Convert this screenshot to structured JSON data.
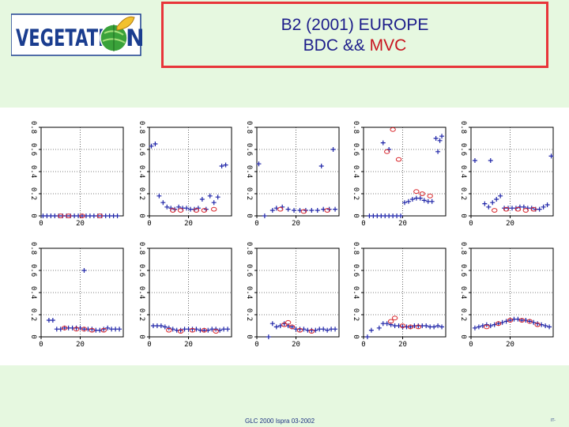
{
  "logo": {
    "text": "VEGETATI",
    "text_end": "N",
    "icon": "globe-leaf-icon",
    "colors": {
      "text": "#1a3d8f",
      "globe": "#3aa23a",
      "leaf": "#f2c12e"
    }
  },
  "title": {
    "line1": "B2 (2001) EUROPE",
    "line2_prefix": "BDC && ",
    "line2_accent": "MVC"
  },
  "footer": {
    "text": "GLC 2000 Ispra 03-2002",
    "page_mark": "IT-"
  },
  "colors": {
    "background": "#e6f8e0",
    "title_text": "#1c1c8a",
    "title_accent": "#c8141e",
    "title_border": "#e8353a",
    "bdc_marker": "#1f25a8",
    "mvc_marker": "#d9262b"
  },
  "chart_data": {
    "type": "scatter",
    "rows": 2,
    "cols": 5,
    "ylim": [
      0,
      0.8
    ],
    "xlim": [
      0,
      42
    ],
    "yticks": [
      "0",
      "0.2",
      "0.4",
      "0.6",
      "0.8"
    ],
    "xticks": [
      "0",
      "20"
    ],
    "xtick_values": [
      0,
      20
    ],
    "panels": [
      {
        "bdc": [
          [
            1,
            0
          ],
          [
            3,
            0
          ],
          [
            5,
            0
          ],
          [
            7,
            0
          ],
          [
            9,
            0
          ],
          [
            11,
            0
          ],
          [
            13,
            0
          ],
          [
            15,
            0
          ],
          [
            17,
            0
          ],
          [
            19,
            0
          ],
          [
            21,
            0
          ],
          [
            23,
            0
          ],
          [
            25,
            0
          ],
          [
            27,
            0
          ],
          [
            29,
            0
          ],
          [
            31,
            0
          ],
          [
            33,
            0
          ],
          [
            35,
            0
          ],
          [
            37,
            0
          ],
          [
            39,
            0
          ]
        ],
        "mvc": [
          [
            10,
            0
          ],
          [
            14,
            0
          ],
          [
            21,
            0
          ],
          [
            30,
            0
          ]
        ]
      },
      {
        "bdc": [
          [
            1,
            0.63
          ],
          [
            3,
            0.65
          ],
          [
            5,
            0.18
          ],
          [
            7,
            0.12
          ],
          [
            9,
            0.08
          ],
          [
            11,
            0.07
          ],
          [
            13,
            0.06
          ],
          [
            15,
            0.08
          ],
          [
            17,
            0.07
          ],
          [
            19,
            0.07
          ],
          [
            21,
            0.06
          ],
          [
            23,
            0.06
          ],
          [
            25,
            0.07
          ],
          [
            27,
            0.15
          ],
          [
            29,
            0.06
          ],
          [
            31,
            0.18
          ],
          [
            33,
            0.12
          ],
          [
            35,
            0.17
          ],
          [
            37,
            0.45
          ],
          [
            39,
            0.46
          ]
        ],
        "mvc": [
          [
            12,
            0.05
          ],
          [
            16,
            0.05
          ],
          [
            24,
            0.05
          ],
          [
            28,
            0.05
          ],
          [
            33,
            0.06
          ]
        ]
      },
      {
        "bdc": [
          [
            1,
            0.47
          ],
          [
            4,
            0.0
          ],
          [
            8,
            0.05
          ],
          [
            10,
            0.07
          ],
          [
            13,
            0.08
          ],
          [
            16,
            0.06
          ],
          [
            19,
            0.05
          ],
          [
            22,
            0.05
          ],
          [
            25,
            0.05
          ],
          [
            28,
            0.05
          ],
          [
            31,
            0.05
          ],
          [
            34,
            0.06
          ],
          [
            37,
            0.06
          ],
          [
            40,
            0.06
          ],
          [
            33,
            0.45
          ],
          [
            39,
            0.6
          ]
        ],
        "mvc": [
          [
            12,
            0.06
          ],
          [
            24,
            0.04
          ],
          [
            36,
            0.05
          ]
        ]
      },
      {
        "bdc": [
          [
            3,
            0.0
          ],
          [
            5,
            0.0
          ],
          [
            7,
            0.0
          ],
          [
            9,
            0.0
          ],
          [
            11,
            0.0
          ],
          [
            13,
            0.0
          ],
          [
            15,
            0.0
          ],
          [
            17,
            0.0
          ],
          [
            19,
            0.0
          ],
          [
            10,
            0.66
          ],
          [
            13,
            0.6
          ],
          [
            21,
            0.12
          ],
          [
            23,
            0.13
          ],
          [
            25,
            0.15
          ],
          [
            27,
            0.16
          ],
          [
            29,
            0.16
          ],
          [
            31,
            0.14
          ],
          [
            33,
            0.13
          ],
          [
            35,
            0.13
          ],
          [
            37,
            0.7
          ],
          [
            39,
            0.68
          ],
          [
            40,
            0.72
          ],
          [
            38,
            0.58
          ]
        ],
        "mvc": [
          [
            12,
            0.58
          ],
          [
            15,
            0.78
          ],
          [
            18,
            0.51
          ],
          [
            27,
            0.22
          ],
          [
            30,
            0.2
          ],
          [
            34,
            0.18
          ]
        ]
      },
      {
        "bdc": [
          [
            2,
            0.5
          ],
          [
            10,
            0.5
          ],
          [
            7,
            0.11
          ],
          [
            9,
            0.08
          ],
          [
            11,
            0.12
          ],
          [
            13,
            0.15
          ],
          [
            15,
            0.18
          ],
          [
            17,
            0.07
          ],
          [
            19,
            0.07
          ],
          [
            21,
            0.07
          ],
          [
            23,
            0.07
          ],
          [
            25,
            0.08
          ],
          [
            27,
            0.08
          ],
          [
            29,
            0.07
          ],
          [
            31,
            0.07
          ],
          [
            33,
            0.06
          ],
          [
            35,
            0.06
          ],
          [
            37,
            0.08
          ],
          [
            39,
            0.1
          ],
          [
            41,
            0.54
          ]
        ],
        "mvc": [
          [
            12,
            0.05
          ],
          [
            18,
            0.06
          ],
          [
            24,
            0.06
          ],
          [
            28,
            0.05
          ],
          [
            32,
            0.06
          ]
        ]
      },
      {
        "bdc": [
          [
            4,
            0.15
          ],
          [
            6,
            0.15
          ],
          [
            8,
            0.07
          ],
          [
            10,
            0.07
          ],
          [
            12,
            0.08
          ],
          [
            14,
            0.08
          ],
          [
            16,
            0.08
          ],
          [
            18,
            0.08
          ],
          [
            20,
            0.08
          ],
          [
            22,
            0.07
          ],
          [
            24,
            0.07
          ],
          [
            26,
            0.07
          ],
          [
            28,
            0.06
          ],
          [
            30,
            0.06
          ],
          [
            32,
            0.07
          ],
          [
            34,
            0.08
          ],
          [
            36,
            0.07
          ],
          [
            38,
            0.07
          ],
          [
            40,
            0.07
          ],
          [
            22,
            0.6
          ]
        ],
        "mvc": [
          [
            12,
            0.08
          ],
          [
            18,
            0.07
          ],
          [
            22,
            0.07
          ],
          [
            26,
            0.06
          ],
          [
            32,
            0.06
          ]
        ]
      },
      {
        "bdc": [
          [
            2,
            0.1
          ],
          [
            4,
            0.1
          ],
          [
            6,
            0.1
          ],
          [
            8,
            0.09
          ],
          [
            10,
            0.08
          ],
          [
            12,
            0.07
          ],
          [
            14,
            0.06
          ],
          [
            16,
            0.06
          ],
          [
            18,
            0.07
          ],
          [
            20,
            0.07
          ],
          [
            22,
            0.07
          ],
          [
            24,
            0.07
          ],
          [
            26,
            0.06
          ],
          [
            28,
            0.06
          ],
          [
            30,
            0.06
          ],
          [
            32,
            0.07
          ],
          [
            34,
            0.07
          ],
          [
            36,
            0.06
          ],
          [
            38,
            0.07
          ],
          [
            40,
            0.07
          ]
        ],
        "mvc": [
          [
            10,
            0.06
          ],
          [
            16,
            0.05
          ],
          [
            22,
            0.06
          ],
          [
            28,
            0.06
          ],
          [
            34,
            0.05
          ]
        ]
      },
      {
        "bdc": [
          [
            6,
            0.0
          ],
          [
            8,
            0.12
          ],
          [
            10,
            0.09
          ],
          [
            12,
            0.1
          ],
          [
            14,
            0.12
          ],
          [
            16,
            0.1
          ],
          [
            18,
            0.09
          ],
          [
            20,
            0.07
          ],
          [
            22,
            0.07
          ],
          [
            24,
            0.07
          ],
          [
            26,
            0.06
          ],
          [
            28,
            0.06
          ],
          [
            30,
            0.06
          ],
          [
            32,
            0.07
          ],
          [
            34,
            0.07
          ],
          [
            36,
            0.06
          ],
          [
            38,
            0.07
          ],
          [
            40,
            0.07
          ]
        ],
        "mvc": [
          [
            14,
            0.11
          ],
          [
            16,
            0.13
          ],
          [
            18,
            0.09
          ],
          [
            22,
            0.06
          ],
          [
            28,
            0.05
          ]
        ]
      },
      {
        "bdc": [
          [
            2,
            0.0
          ],
          [
            4,
            0.06
          ],
          [
            8,
            0.08
          ],
          [
            10,
            0.12
          ],
          [
            12,
            0.12
          ],
          [
            14,
            0.11
          ],
          [
            16,
            0.1
          ],
          [
            18,
            0.1
          ],
          [
            20,
            0.09
          ],
          [
            22,
            0.09
          ],
          [
            24,
            0.09
          ],
          [
            26,
            0.1
          ],
          [
            28,
            0.1
          ],
          [
            30,
            0.1
          ],
          [
            32,
            0.1
          ],
          [
            34,
            0.09
          ],
          [
            36,
            0.09
          ],
          [
            38,
            0.1
          ],
          [
            40,
            0.09
          ]
        ],
        "mvc": [
          [
            14,
            0.14
          ],
          [
            16,
            0.17
          ],
          [
            20,
            0.1
          ],
          [
            24,
            0.09
          ],
          [
            28,
            0.09
          ]
        ]
      },
      {
        "bdc": [
          [
            2,
            0.08
          ],
          [
            4,
            0.09
          ],
          [
            6,
            0.1
          ],
          [
            8,
            0.11
          ],
          [
            10,
            0.1
          ],
          [
            12,
            0.11
          ],
          [
            14,
            0.12
          ],
          [
            16,
            0.13
          ],
          [
            18,
            0.14
          ],
          [
            20,
            0.15
          ],
          [
            22,
            0.16
          ],
          [
            24,
            0.16
          ],
          [
            26,
            0.15
          ],
          [
            28,
            0.15
          ],
          [
            30,
            0.14
          ],
          [
            32,
            0.13
          ],
          [
            34,
            0.12
          ],
          [
            36,
            0.11
          ],
          [
            38,
            0.1
          ],
          [
            40,
            0.09
          ]
        ],
        "mvc": [
          [
            8,
            0.09
          ],
          [
            14,
            0.12
          ],
          [
            20,
            0.15
          ],
          [
            26,
            0.15
          ],
          [
            30,
            0.14
          ],
          [
            34,
            0.11
          ]
        ]
      }
    ]
  }
}
